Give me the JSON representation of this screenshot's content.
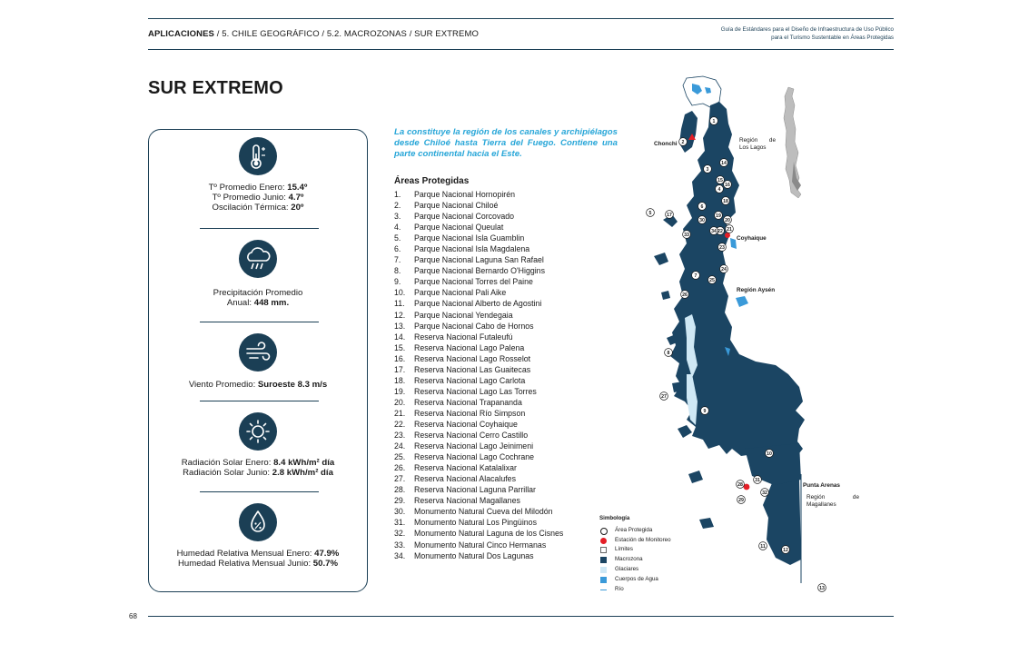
{
  "header": {
    "crumb_bold": "APLICACIONES",
    "crumb_rest": " / 5. CHILE GEOGRÁFICO / 5.2. MACROZONAS / SUR EXTREMO",
    "guide_line1": "Guía de Estándares para el Diseño de Infraestructura de Uso Público",
    "guide_line2": "para el Turismo Sustentable en Áreas Protegidas"
  },
  "title": "SUR EXTREMO",
  "stats": {
    "temp": {
      "icon": "thermometer-icon",
      "l1_label": "Tº Promedio Enero: ",
      "l1_value": "15.4º",
      "l2_label": "Tº Promedio Junio: ",
      "l2_value": "4.7º",
      "l3_label": "Oscilación Térmica: ",
      "l3_value": "20º"
    },
    "precip": {
      "icon": "rain-cloud-icon",
      "l1_label": "Precipitación Promedio",
      "l2_label": "Anual: ",
      "l2_value": "448 mm."
    },
    "wind": {
      "icon": "wind-icon",
      "l1_label": "Viento Promedio: ",
      "l1_value": "Suroeste 8.3  m/s"
    },
    "solar": {
      "icon": "sun-icon",
      "l1_label": "Radiación Solar Enero: ",
      "l1_value": "8.4 kWh/m² día",
      "l2_label": "Radiación Solar Junio: ",
      "l2_value": "2.8 kWh/m² día"
    },
    "humidity": {
      "icon": "humidity-drop-icon",
      "l1_label": "Humedad Relativa Mensual Enero: ",
      "l1_value": "47.9%",
      "l2_label": "Humedad Relativa Mensual Junio: ",
      "l2_value": "50.7%"
    }
  },
  "intro": "La constituye la región de los canales y archipiélagos desde Chiloé hasta Tierra del Fuego. Contiene una parte continental hacia el Este.",
  "areas_heading": "Áreas Protegidas",
  "areas": [
    {
      "n": "1.",
      "name": "Parque Nacional Hornopirén"
    },
    {
      "n": "2.",
      "name": "Parque Nacional Chiloé"
    },
    {
      "n": "3.",
      "name": "Parque Nacional Corcovado"
    },
    {
      "n": "4.",
      "name": "Parque Nacional Queulat"
    },
    {
      "n": "5.",
      "name": "Parque Nacional Isla Guamblin"
    },
    {
      "n": "6.",
      "name": "Parque Nacional Isla Magdalena"
    },
    {
      "n": "7.",
      "name": "Parque Nacional Laguna San Rafael"
    },
    {
      "n": "8.",
      "name": "Parque Nacional Bernardo O'Higgins"
    },
    {
      "n": "9.",
      "name": "Parque Nacional Torres del Paine"
    },
    {
      "n": "10.",
      "name": "Parque Nacional Pali Aike"
    },
    {
      "n": "11.",
      "name": "Parque Nacional Alberto de Agostini"
    },
    {
      "n": "12.",
      "name": "Parque Nacional Yendegaia"
    },
    {
      "n": "13.",
      "name": "Parque Nacional Cabo de Hornos"
    },
    {
      "n": "14.",
      "name": "Reserva Nacional Futaleufú"
    },
    {
      "n": "15.",
      "name": "Reserva Nacional Lago Palena"
    },
    {
      "n": "16.",
      "name": "Reserva Nacional Lago Rosselot"
    },
    {
      "n": "17.",
      "name": "Reserva Nacional Las Guaitecas"
    },
    {
      "n": "18.",
      "name": "Reserva Nacional Lago Carlota"
    },
    {
      "n": "19.",
      "name": "Reserva Nacional Lago Las Torres"
    },
    {
      "n": "20.",
      "name": "Reserva Nacional Trapananda"
    },
    {
      "n": "21.",
      "name": "Reserva Nacional Río Simpson"
    },
    {
      "n": "22.",
      "name": "Reserva Nacional Coyhaique"
    },
    {
      "n": "23.",
      "name": "Reserva Nacional Cerro Castillo"
    },
    {
      "n": "24.",
      "name": "Reserva Nacional Lago Jeinimeni"
    },
    {
      "n": "25.",
      "name": "Reserva Nacional Lago Cochrane"
    },
    {
      "n": "26.",
      "name": "Reserva Nacional Katalalixar"
    },
    {
      "n": "27.",
      "name": "Reserva Nacional Alacalufes"
    },
    {
      "n": "28.",
      "name": "Reserva Nacional Laguna Parrillar"
    },
    {
      "n": "29.",
      "name": "Reserva Nacional Magallanes"
    },
    {
      "n": "30.",
      "name": "Monumento Natural Cueva del Milodón"
    },
    {
      "n": "31.",
      "name": "Monumento Natural Los Pingüinos"
    },
    {
      "n": "32.",
      "name": "Monumento Natural Laguna de los Cisnes"
    },
    {
      "n": "33.",
      "name": "Monumento Natural Cinco Hermanas"
    },
    {
      "n": "34.",
      "name": "Monumento Natural Dos Lagunas"
    }
  ],
  "map": {
    "labels": {
      "chonchi": "Chonchi",
      "region_lagos_1": "Región",
      "region_lagos_de": "de",
      "region_lagos_2": "Los Lagos",
      "coyhaique": "Coyhaique",
      "region_aysen": "Región Aysén",
      "punta_arenas": "Punta Arenas",
      "region_mag_1": "Región",
      "region_mag_de": "de",
      "region_mag_2": "Magallanes"
    },
    "markers": [
      "1",
      "2",
      "3",
      "4",
      "5",
      "6",
      "7",
      "8",
      "9",
      "10",
      "11",
      "12",
      "13",
      "14",
      "15",
      "16",
      "17",
      "18",
      "19",
      "20",
      "21",
      "22",
      "23",
      "24",
      "25",
      "26",
      "27",
      "28",
      "29",
      "30",
      "31",
      "32",
      "33",
      "34"
    ],
    "colors": {
      "macrozona": "#1b4563",
      "glaciar": "#cfe8f5",
      "agua": "#3a9ad9",
      "station": "#e41e26"
    }
  },
  "legend": {
    "title": "Simbología",
    "items": [
      {
        "label": "Área Protegida"
      },
      {
        "label": "Estación de Monitoreo"
      },
      {
        "label": "Límites"
      },
      {
        "label": "Macrozona"
      },
      {
        "label": "Glaciares"
      },
      {
        "label": "Cuerpos de Agua"
      },
      {
        "label": "Río"
      }
    ]
  },
  "page_number": "68"
}
